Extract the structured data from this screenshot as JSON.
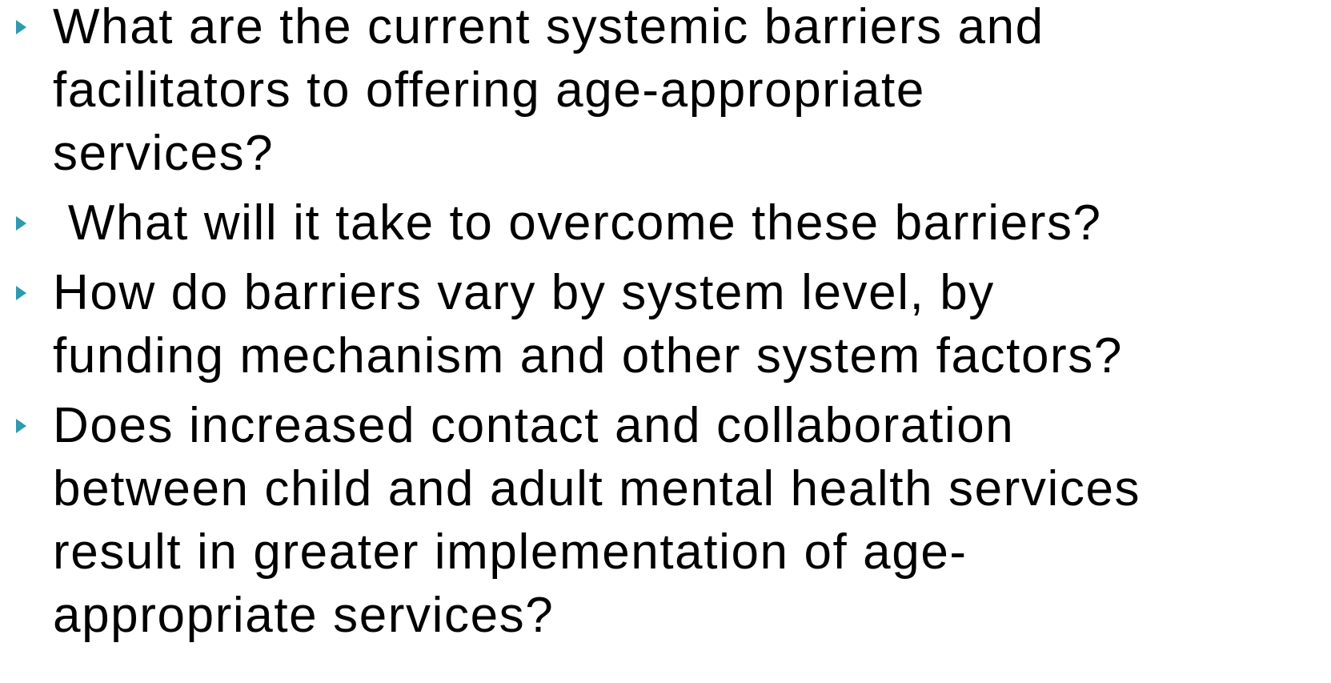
{
  "bullets": [
    {
      "lines": [
        "What are the current systemic barriers and",
        "facilitators to offering age-appropriate",
        "services?"
      ]
    },
    {
      "lines": [
        " What will it take to overcome these barriers?"
      ]
    },
    {
      "lines": [
        "How do barriers vary by system level, by",
        "funding mechanism and other system factors?"
      ]
    },
    {
      "lines": [
        "Does increased contact and collaboration",
        "between child and adult mental health services",
        "result in greater implementation of age-",
        "appropriate services?"
      ]
    }
  ]
}
